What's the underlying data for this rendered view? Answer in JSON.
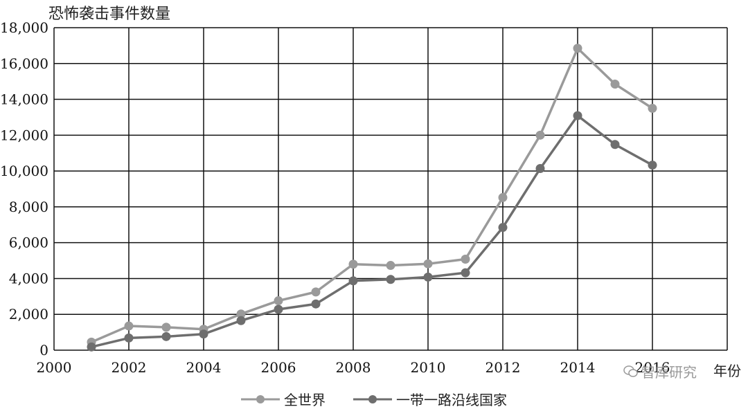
{
  "chart_data": {
    "type": "line",
    "ylabel": "恐怖袭击事件数量",
    "xlabel": "年份",
    "xlim": [
      2000,
      2018
    ],
    "ylim": [
      0,
      18000
    ],
    "x_ticks": [
      "2000",
      "2002",
      "2004",
      "2006",
      "2008",
      "2010",
      "2012",
      "2014",
      "2016"
    ],
    "y_ticks": [
      "0",
      "2,000",
      "4,000",
      "6,000",
      "8,000",
      "10,000",
      "12,000",
      "14,000",
      "16,000",
      "18,000"
    ],
    "grid": true,
    "legend_position": "bottom",
    "x": [
      2001,
      2002,
      2003,
      2004,
      2005,
      2006,
      2007,
      2008,
      2009,
      2010,
      2011,
      2012,
      2013,
      2014,
      2015,
      2016
    ],
    "series": [
      {
        "name": "全世界",
        "color": "#9a9a9a",
        "values": [
          450,
          1350,
          1280,
          1170,
          2020,
          2760,
          3250,
          4800,
          4730,
          4820,
          5080,
          8520,
          12000,
          16850,
          14850,
          13500
        ]
      },
      {
        "name": "一带一路沿线国家",
        "color": "#6e6e6e",
        "values": [
          180,
          680,
          760,
          900,
          1650,
          2280,
          2580,
          3870,
          3950,
          4080,
          4320,
          6850,
          10140,
          13090,
          11480,
          10330
        ]
      }
    ]
  },
  "watermark": {
    "text": "智库研究",
    "icon": "wechat-icon"
  }
}
